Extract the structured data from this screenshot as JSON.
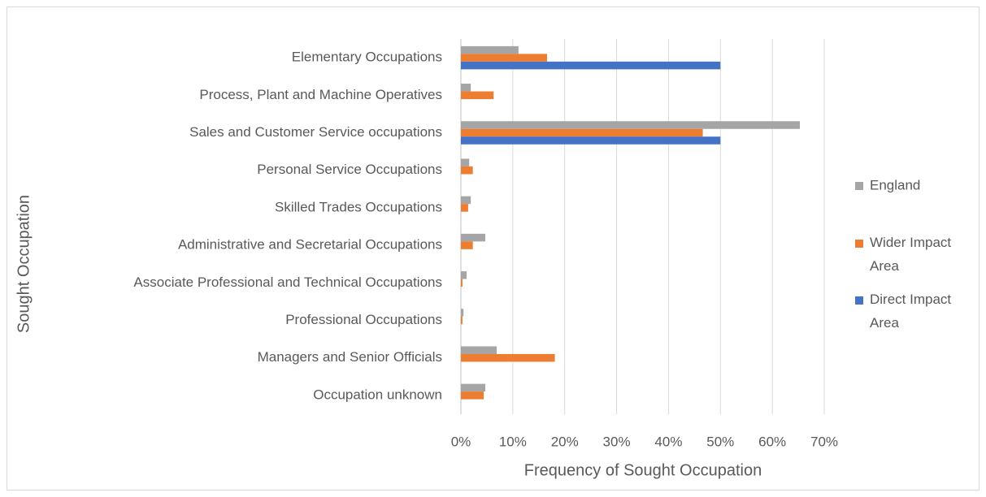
{
  "chart_data": {
    "type": "hbar",
    "xlabel": "Frequency of Sought Occupation",
    "ylabel": "Sought Occupation",
    "categories": [
      "Elementary Occupations",
      "Process, Plant and Machine Operatives",
      "Sales and Customer Service occupations",
      "Personal Service Occupations",
      "Skilled Trades Occupations",
      "Administrative and Secretarial Occupations",
      "Associate Professional and Technical Occupations",
      "Professional Occupations",
      "Managers and Senior Officials",
      "Occupation unknown"
    ],
    "series": [
      {
        "name": "England",
        "color": "#a5a5a5",
        "values": [
          11.1,
          1.9,
          65.3,
          1.6,
          1.9,
          4.7,
          1.1,
          0.5,
          6.9,
          4.7
        ]
      },
      {
        "name": "Wider Impact Area",
        "color": "#ed7d31",
        "values": [
          16.6,
          6.3,
          46.6,
          2.3,
          1.4,
          2.3,
          0.3,
          0.3,
          18.1,
          4.4
        ]
      },
      {
        "name": "Direct Impact Area",
        "color": "#4472c4",
        "values": [
          50,
          0,
          50,
          0,
          0,
          0,
          0,
          0,
          0,
          0
        ]
      }
    ],
    "xlim": [
      0,
      70
    ],
    "xticks": [
      {
        "value": 0,
        "label": "0%"
      },
      {
        "value": 10,
        "label": "10%"
      },
      {
        "value": 20,
        "label": "20%"
      },
      {
        "value": 30,
        "label": "30%"
      },
      {
        "value": 40,
        "label": "40%"
      },
      {
        "value": 50,
        "label": "50%"
      },
      {
        "value": 60,
        "label": "60%"
      },
      {
        "value": 70,
        "label": "70%"
      }
    ],
    "grid": true,
    "legend": "right"
  }
}
